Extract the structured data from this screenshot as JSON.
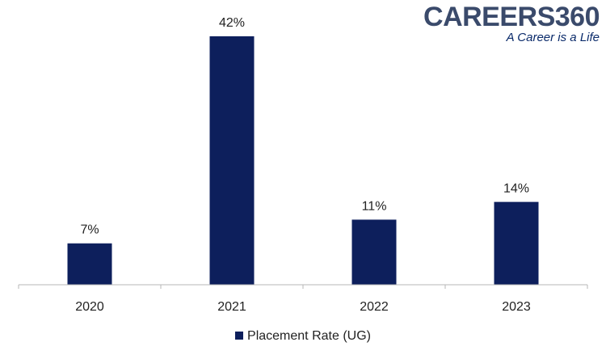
{
  "logo": {
    "brand": "CAREERS360",
    "tagline": "A Career is a Life"
  },
  "colors": {
    "bar": "#0d1f5c",
    "axis": "#b7b7b7",
    "label": "#222222"
  },
  "chart_data": {
    "type": "bar",
    "categories": [
      "2020",
      "2021",
      "2022",
      "2023"
    ],
    "series": [
      {
        "name": "Placement Rate (UG)",
        "values": [
          7,
          42,
          11,
          14
        ]
      }
    ],
    "data_labels": [
      "7%",
      "42%",
      "11%",
      "14%"
    ],
    "value_unit": "%",
    "ylim": [
      0,
      42
    ],
    "grid": false,
    "legend_position": "bottom"
  }
}
